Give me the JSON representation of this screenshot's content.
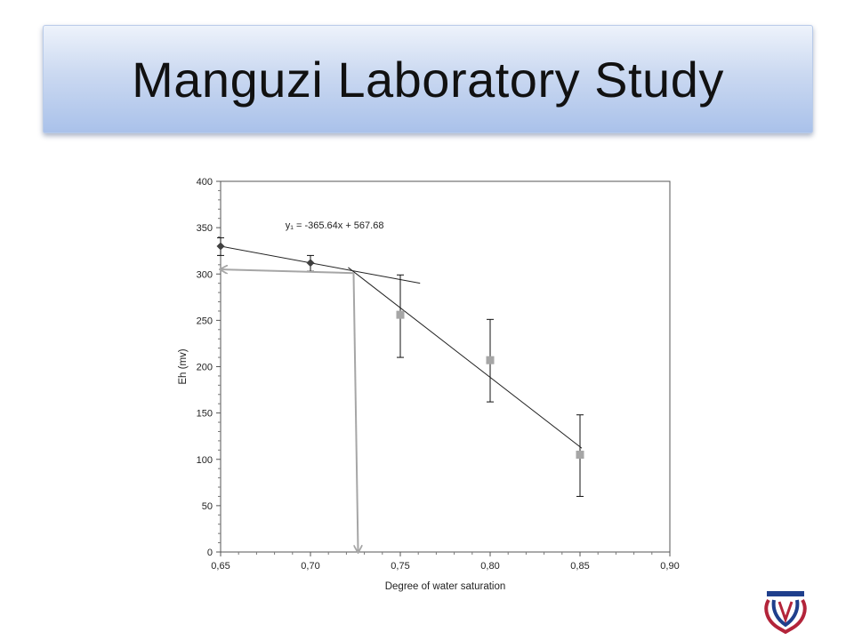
{
  "slide": {
    "title": "Manguzi Laboratory Study"
  },
  "logo": {
    "name": "university-logo",
    "colors": [
      "#1f3f8c",
      "#b3243a"
    ]
  },
  "chart_data": {
    "type": "scatter",
    "title": "",
    "xlabel": "Degree of water saturation",
    "ylabel": "Eh (mv)",
    "xlim": [
      0.65,
      0.9
    ],
    "ylim": [
      0,
      400
    ],
    "x_ticks": [
      0.65,
      0.7,
      0.75,
      0.8,
      0.85,
      0.9
    ],
    "x_tick_labels": [
      "0,65",
      "0,70",
      "0,75",
      "0,80",
      "0,85",
      "0,90"
    ],
    "y_ticks": [
      0,
      50,
      100,
      150,
      200,
      250,
      300,
      350,
      400
    ],
    "y_tick_labels": [
      "0",
      "50",
      "100",
      "150",
      "200",
      "250",
      "300",
      "350",
      "400"
    ],
    "grid": false,
    "legend": "none",
    "series": [
      {
        "marker": "diamond",
        "color": "#404040",
        "points": [
          {
            "x": 0.65,
            "y": 330,
            "err_low": 320,
            "err_high": 339
          },
          {
            "x": 0.7,
            "y": 312,
            "err_low": 303,
            "err_high": 320
          }
        ]
      },
      {
        "marker": "square",
        "color": "#a6a6a6",
        "points": [
          {
            "x": 0.75,
            "y": 256,
            "err_low": 210,
            "err_high": 299
          },
          {
            "x": 0.8,
            "y": 207,
            "err_low": 162,
            "err_high": 251
          },
          {
            "x": 0.85,
            "y": 105,
            "err_low": 60,
            "err_high": 148
          }
        ]
      }
    ],
    "trendlines": [
      {
        "x": [
          0.65,
          0.761
        ],
        "y": [
          330,
          290
        ],
        "color": "#222222"
      },
      {
        "x": [
          0.721,
          0.851
        ],
        "y": [
          307,
          112
        ],
        "color": "#222222"
      }
    ],
    "annotations": [
      {
        "text": "y₁ = -365.64x + 567.68",
        "x": 0.686,
        "y": 349
      }
    ],
    "arrows": [
      {
        "from": [
          0.724,
          301
        ],
        "to": [
          0.65,
          305
        ],
        "color": "#a6a6a6"
      },
      {
        "from": [
          0.724,
          301
        ],
        "to": [
          0.7265,
          0
        ],
        "color": "#a6a6a6"
      }
    ]
  }
}
